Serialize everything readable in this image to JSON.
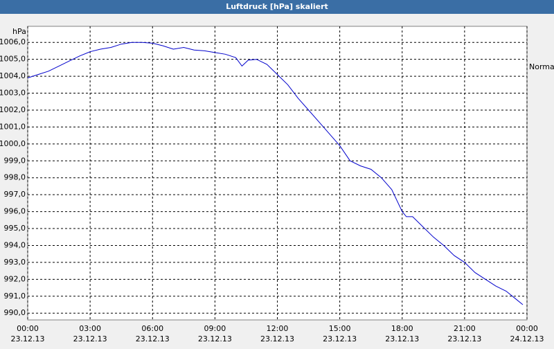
{
  "chart_data": {
    "type": "line",
    "title": "Luftdruck [hPa] skaliert",
    "y_unit": "hPa",
    "xlim": [
      0,
      24
    ],
    "ylim": [
      989.6,
      1006.95
    ],
    "grid": true,
    "xticks": [
      {
        "value": 0,
        "label": "00:00",
        "date": "23.12.13"
      },
      {
        "value": 3,
        "label": "03:00",
        "date": "23.12.13"
      },
      {
        "value": 6,
        "label": "06:00",
        "date": "23.12.13"
      },
      {
        "value": 9,
        "label": "09:00",
        "date": "23.12.13"
      },
      {
        "value": 12,
        "label": "12:00",
        "date": "23.12.13"
      },
      {
        "value": 15,
        "label": "15:00",
        "date": "23.12.13"
      },
      {
        "value": 18,
        "label": "18:00",
        "date": "23.12.13"
      },
      {
        "value": 21,
        "label": "21:00",
        "date": "23.12.13"
      },
      {
        "value": 24,
        "label": "00:00",
        "date": "24.12.13"
      }
    ],
    "yticks": [
      {
        "value": 990,
        "label": "990,0"
      },
      {
        "value": 991,
        "label": "991,0"
      },
      {
        "value": 992,
        "label": "992,0"
      },
      {
        "value": 993,
        "label": "993,0"
      },
      {
        "value": 994,
        "label": "994,0"
      },
      {
        "value": 995,
        "label": "995,0"
      },
      {
        "value": 996,
        "label": "996,0"
      },
      {
        "value": 997,
        "label": "997,0"
      },
      {
        "value": 998,
        "label": "998,0"
      },
      {
        "value": 999,
        "label": "999,0"
      },
      {
        "value": 1000,
        "label": "1000,0"
      },
      {
        "value": 1001,
        "label": "1001,0"
      },
      {
        "value": 1002,
        "label": "1002,0"
      },
      {
        "value": 1003,
        "label": "1003,0"
      },
      {
        "value": 1004,
        "label": "1004,0"
      },
      {
        "value": 1005,
        "label": "1005,0"
      },
      {
        "value": 1006,
        "label": "1006,0"
      }
    ],
    "x": [
      0,
      0.5,
      1,
      1.5,
      2,
      2.5,
      3,
      3.5,
      4,
      4.5,
      5,
      5.5,
      6,
      6.5,
      7,
      7.5,
      8,
      8.5,
      9,
      9.5,
      10,
      10.3,
      10.6,
      11,
      11.5,
      12,
      12.5,
      13,
      13.5,
      14,
      14.5,
      15,
      15.5,
      16,
      16.5,
      17,
      17.5,
      18,
      18.2,
      18.5,
      19,
      19.5,
      20,
      20.5,
      21,
      21.5,
      22,
      22.5,
      23,
      23.5,
      23.8
    ],
    "series": [
      {
        "name": "Normal",
        "color": "#0000cc",
        "values": [
          1003.9,
          1004.1,
          1004.3,
          1004.6,
          1004.9,
          1005.2,
          1005.45,
          1005.6,
          1005.7,
          1005.9,
          1006.0,
          1006.0,
          1005.95,
          1005.8,
          1005.6,
          1005.7,
          1005.55,
          1005.5,
          1005.4,
          1005.3,
          1005.1,
          1004.6,
          1004.95,
          1005.0,
          1004.7,
          1004.1,
          1003.5,
          1002.7,
          1002.0,
          1001.3,
          1000.6,
          999.9,
          999.0,
          998.7,
          998.5,
          998.0,
          997.3,
          996.0,
          995.7,
          995.7,
          995.1,
          994.5,
          994.0,
          993.4,
          993.0,
          992.4,
          992.0,
          991.6,
          991.3,
          990.8,
          990.5
        ]
      }
    ]
  }
}
